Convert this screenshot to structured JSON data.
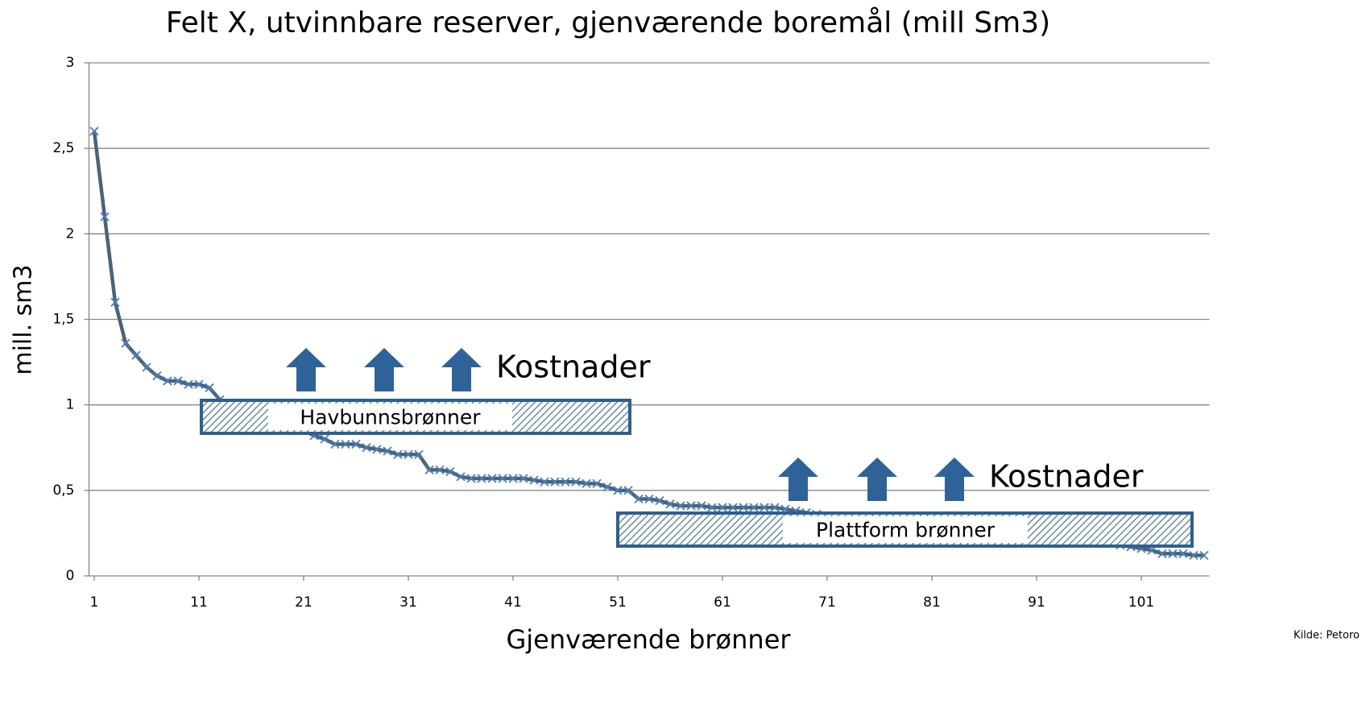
{
  "chart_data": {
    "type": "line",
    "title": "Felt X, utvinnbare reserver, gjenværende boremål  (mill Sm3)",
    "x_label": "Gjenværende brønner",
    "y_label": "mill. sm3",
    "annotations": [
      "Kostnader",
      "Havbunnsbrønner",
      "Kostnader",
      "Plattform brønner"
    ],
    "source": "Kilde:  Petoro",
    "x": [
      1,
      2,
      3,
      4,
      5,
      6,
      7,
      8,
      9,
      10,
      11,
      12,
      13,
      14,
      15,
      16,
      17,
      18,
      19,
      20,
      21,
      22,
      23,
      24,
      25,
      26,
      27,
      28,
      29,
      30,
      31,
      32,
      33,
      34,
      35,
      36,
      37,
      38,
      39,
      40,
      41,
      42,
      43,
      44,
      45,
      46,
      47,
      48,
      49,
      50,
      51,
      52,
      53,
      54,
      55,
      56,
      57,
      58,
      59,
      60,
      61,
      62,
      63,
      64,
      65,
      66,
      67,
      68,
      69,
      70,
      71,
      72,
      73,
      74,
      75,
      76,
      77,
      78,
      79,
      80,
      81,
      82,
      83,
      84,
      85,
      86,
      87,
      88,
      89,
      90,
      91,
      92,
      93,
      94,
      95,
      96,
      97,
      98,
      99,
      100,
      101,
      102,
      103,
      104,
      105,
      106,
      107
    ],
    "series": [
      {
        "name": "Felt X",
        "color": "#4a6378",
        "marker_color": "#4a7ebb",
        "values": [
          2.6,
          2.1,
          1.6,
          1.36,
          1.29,
          1.22,
          1.17,
          1.14,
          1.14,
          1.12,
          1.12,
          1.1,
          1.03,
          1.0,
          0.98,
          0.96,
          0.94,
          0.92,
          0.9,
          0.88,
          0.85,
          0.82,
          0.8,
          0.77,
          0.77,
          0.77,
          0.75,
          0.74,
          0.73,
          0.71,
          0.71,
          0.71,
          0.62,
          0.62,
          0.61,
          0.58,
          0.57,
          0.57,
          0.57,
          0.57,
          0.57,
          0.57,
          0.56,
          0.55,
          0.55,
          0.55,
          0.55,
          0.54,
          0.54,
          0.52,
          0.5,
          0.5,
          0.45,
          0.45,
          0.44,
          0.42,
          0.41,
          0.41,
          0.41,
          0.4,
          0.4,
          0.4,
          0.4,
          0.4,
          0.4,
          0.4,
          0.39,
          0.38,
          0.37,
          0.36,
          0.35,
          0.34,
          0.34,
          0.33,
          0.33,
          0.32,
          0.31,
          0.31,
          0.3,
          0.3,
          0.29,
          0.28,
          0.28,
          0.27,
          0.27,
          0.26,
          0.25,
          0.25,
          0.24,
          0.24,
          0.23,
          0.22,
          0.22,
          0.21,
          0.21,
          0.2,
          0.19,
          0.19,
          0.18,
          0.17,
          0.16,
          0.15,
          0.13,
          0.13,
          0.13,
          0.12,
          0.12
        ]
      }
    ],
    "xlim": [
      0.5,
      107.5
    ],
    "xticks": [
      1,
      11,
      21,
      31,
      41,
      51,
      61,
      71,
      81,
      91,
      101
    ],
    "ylim": [
      0,
      3
    ],
    "yticks": [
      0,
      {
        "value": 0.5,
        "label": "0,5"
      },
      1,
      {
        "value": 1.5,
        "label": "1,5"
      },
      2,
      {
        "value": 2.5,
        "label": "2,5"
      },
      3
    ],
    "grid": true
  }
}
